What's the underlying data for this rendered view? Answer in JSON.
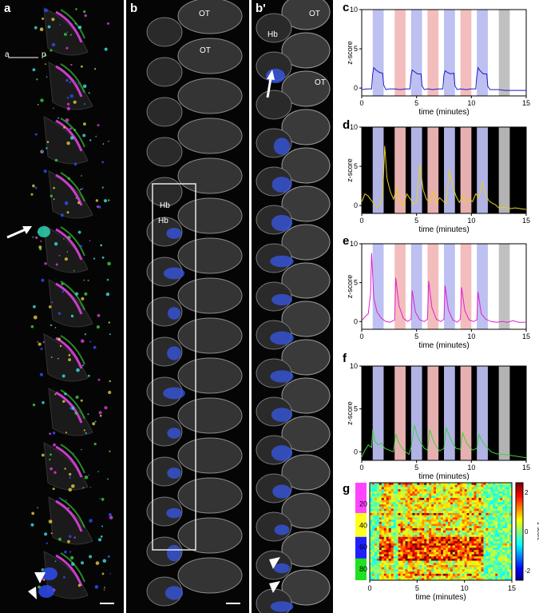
{
  "figure": {
    "panel_a": {
      "label": "a",
      "axis_left": "a",
      "axis_right": "p"
    },
    "panel_b": {
      "label": "b",
      "ot1": "OT",
      "ot2": "OT",
      "hb1": "Hb",
      "hb2": "Hb"
    },
    "panel_b2": {
      "label": "b'",
      "hb": "Hb",
      "ot1": "OT",
      "ot2": "OT"
    }
  },
  "chart_data": [
    {
      "panel": "c",
      "type": "line",
      "xlabel": "time (minutes)",
      "ylabel": "z-score",
      "xlim": [
        0,
        15
      ],
      "ylim": [
        -1,
        10
      ],
      "xticks": [
        0,
        5,
        10,
        15
      ],
      "yticks": [
        0,
        5,
        10
      ],
      "background": "#ffffff",
      "line_color": "#1a1acc",
      "stim_bands": [
        {
          "start": 1.0,
          "end": 2.0,
          "color": "#b9bdf0"
        },
        {
          "start": 3.0,
          "end": 4.0,
          "color": "#f3b9b9"
        },
        {
          "start": 4.5,
          "end": 5.5,
          "color": "#b9bdf0"
        },
        {
          "start": 6.0,
          "end": 7.0,
          "color": "#f3b9b9"
        },
        {
          "start": 7.5,
          "end": 8.5,
          "color": "#b9bdf0"
        },
        {
          "start": 9.0,
          "end": 10.0,
          "color": "#f3b9b9"
        },
        {
          "start": 10.5,
          "end": 11.5,
          "color": "#b9bdf0"
        },
        {
          "start": 12.5,
          "end": 13.5,
          "color": "#bdbdbd"
        }
      ],
      "x": [
        0,
        0.5,
        0.9,
        1.0,
        1.1,
        1.3,
        1.6,
        1.9,
        2.0,
        2.2,
        2.5,
        3.0,
        3.5,
        4.0,
        4.4,
        4.5,
        4.6,
        4.8,
        5.1,
        5.4,
        5.5,
        5.7,
        6.0,
        6.5,
        7.0,
        7.4,
        7.5,
        7.6,
        7.8,
        8.1,
        8.4,
        8.5,
        8.7,
        9.0,
        9.5,
        10.0,
        10.4,
        10.5,
        10.6,
        10.8,
        11.1,
        11.4,
        11.5,
        11.7,
        12.0,
        12.5,
        13.0,
        13.5,
        14.0,
        14.5,
        15.0
      ],
      "y": [
        -0.2,
        -0.1,
        -0.1,
        1.8,
        2.6,
        2.3,
        2.0,
        1.9,
        0.4,
        -0.2,
        -0.1,
        -0.1,
        -0.2,
        -0.1,
        -0.1,
        1.6,
        2.3,
        2.1,
        1.8,
        1.8,
        0.3,
        -0.2,
        -0.1,
        -0.2,
        -0.1,
        -0.1,
        1.7,
        2.2,
        2.0,
        1.8,
        1.9,
        0.3,
        -0.2,
        -0.1,
        -0.2,
        -0.1,
        -0.1,
        1.6,
        2.6,
        2.2,
        1.8,
        1.8,
        0.2,
        -0.2,
        -0.2,
        -0.2,
        -0.3,
        -0.3,
        -0.3,
        -0.3,
        -0.3
      ]
    },
    {
      "panel": "d",
      "type": "line",
      "xlabel": "time (minutes)",
      "ylabel": "z-score",
      "xlim": [
        0,
        15
      ],
      "ylim": [
        -1,
        10
      ],
      "xticks": [
        0,
        5,
        10,
        15
      ],
      "yticks": [
        0,
        5,
        10
      ],
      "background": "#000000",
      "line_color": "#e8d020",
      "stim_bands": [
        {
          "start": 1.0,
          "end": 2.0,
          "color": "#b9bdf0"
        },
        {
          "start": 3.0,
          "end": 4.0,
          "color": "#f3b9b9"
        },
        {
          "start": 4.5,
          "end": 5.5,
          "color": "#b9bdf0"
        },
        {
          "start": 6.0,
          "end": 7.0,
          "color": "#f3b9b9"
        },
        {
          "start": 7.5,
          "end": 8.5,
          "color": "#b9bdf0"
        },
        {
          "start": 9.0,
          "end": 10.0,
          "color": "#f3b9b9"
        },
        {
          "start": 10.5,
          "end": 11.5,
          "color": "#b9bdf0"
        },
        {
          "start": 12.5,
          "end": 13.5,
          "color": "#bdbdbd"
        }
      ],
      "x": [
        0,
        0.3,
        0.6,
        0.9,
        1.1,
        1.4,
        1.7,
        1.9,
        2.1,
        2.3,
        2.6,
        2.9,
        3.2,
        3.5,
        3.8,
        4.1,
        4.4,
        4.7,
        5.0,
        5.3,
        5.6,
        5.9,
        6.2,
        6.5,
        6.8,
        7.1,
        7.4,
        7.7,
        8.0,
        8.3,
        8.6,
        8.9,
        9.2,
        9.5,
        9.8,
        10.1,
        10.4,
        10.7,
        11.0,
        11.3,
        11.6,
        11.9,
        12.2,
        12.5,
        13.0,
        13.5,
        14.0,
        14.5,
        15.0
      ],
      "y": [
        0.5,
        1.5,
        1.2,
        0.6,
        0.3,
        -0.2,
        0.2,
        1.0,
        7.6,
        3.5,
        1.8,
        0.8,
        2.2,
        0.3,
        -0.1,
        1.5,
        0.9,
        0.2,
        0.4,
        5.3,
        2.0,
        0.8,
        0.4,
        1.8,
        0.3,
        1.0,
        0.6,
        0.2,
        4.5,
        2.5,
        1.2,
        0.4,
        1.2,
        0.4,
        0.8,
        0.5,
        1.5,
        1.0,
        3.0,
        1.4,
        0.6,
        0.3,
        0.1,
        -0.3,
        -0.2,
        -0.4,
        -0.3,
        -0.4,
        -0.5
      ]
    },
    {
      "panel": "e",
      "type": "line",
      "xlabel": "time (minutes)",
      "ylabel": "z-score",
      "xlim": [
        0,
        15
      ],
      "ylim": [
        -1,
        10
      ],
      "xticks": [
        0,
        5,
        10,
        15
      ],
      "yticks": [
        0,
        5,
        10
      ],
      "background": "#ffffff",
      "line_color": "#e020d0",
      "stim_bands": [
        {
          "start": 1.0,
          "end": 2.0,
          "color": "#b9bdf0"
        },
        {
          "start": 3.0,
          "end": 4.0,
          "color": "#f3b9b9"
        },
        {
          "start": 4.5,
          "end": 5.5,
          "color": "#b9bdf0"
        },
        {
          "start": 6.0,
          "end": 7.0,
          "color": "#f3b9b9"
        },
        {
          "start": 7.5,
          "end": 8.5,
          "color": "#b9bdf0"
        },
        {
          "start": 9.0,
          "end": 10.0,
          "color": "#f3b9b9"
        },
        {
          "start": 10.5,
          "end": 11.5,
          "color": "#b9bdf0"
        },
        {
          "start": 12.5,
          "end": 13.5,
          "color": "#bdbdbd"
        }
      ],
      "x": [
        0,
        0.3,
        0.6,
        0.8,
        0.9,
        1.1,
        1.4,
        1.8,
        2.2,
        2.6,
        3.0,
        3.1,
        3.4,
        3.8,
        4.2,
        4.5,
        4.6,
        4.9,
        5.3,
        5.7,
        6.0,
        6.1,
        6.4,
        6.8,
        7.2,
        7.5,
        7.6,
        7.9,
        8.3,
        8.7,
        9.0,
        9.1,
        9.4,
        9.8,
        10.2,
        10.5,
        10.6,
        10.9,
        11.3,
        11.8,
        12.3,
        12.8,
        13.3,
        13.8,
        14.3,
        15.0
      ],
      "y": [
        0.1,
        0.6,
        1.0,
        3.5,
        8.8,
        3.0,
        1.2,
        0.4,
        0.0,
        -0.1,
        0.2,
        5.6,
        2.0,
        0.4,
        0.0,
        0.3,
        4.0,
        1.2,
        0.2,
        0.0,
        0.3,
        5.2,
        1.8,
        0.3,
        0.0,
        0.3,
        4.6,
        1.5,
        0.2,
        -0.1,
        0.3,
        4.4,
        1.4,
        0.2,
        0.0,
        0.2,
        3.8,
        1.0,
        0.3,
        0.0,
        -0.1,
        0.0,
        -0.1,
        0.1,
        -0.1,
        -0.1
      ]
    },
    {
      "panel": "f",
      "type": "line",
      "xlabel": "time (minutes)",
      "ylabel": "z-score",
      "xlim": [
        0,
        15
      ],
      "ylim": [
        -1,
        10
      ],
      "xticks": [
        0,
        5,
        10,
        15
      ],
      "yticks": [
        0,
        5,
        10
      ],
      "background": "#000000",
      "line_color": "#40d040",
      "stim_bands": [
        {
          "start": 1.0,
          "end": 2.0,
          "color": "#b9bdf0"
        },
        {
          "start": 3.0,
          "end": 4.0,
          "color": "#f3b9b9"
        },
        {
          "start": 4.5,
          "end": 5.5,
          "color": "#b9bdf0"
        },
        {
          "start": 6.0,
          "end": 7.0,
          "color": "#f3b9b9"
        },
        {
          "start": 7.5,
          "end": 8.5,
          "color": "#b9bdf0"
        },
        {
          "start": 9.0,
          "end": 10.0,
          "color": "#f3b9b9"
        },
        {
          "start": 10.5,
          "end": 11.5,
          "color": "#b9bdf0"
        },
        {
          "start": 12.5,
          "end": 13.5,
          "color": "#bdbdbd"
        }
      ],
      "x": [
        0,
        0.3,
        0.6,
        0.9,
        1.0,
        1.2,
        1.5,
        1.8,
        2.1,
        2.5,
        2.9,
        3.1,
        3.4,
        3.7,
        4.0,
        4.3,
        4.5,
        4.8,
        5.1,
        5.4,
        5.7,
        6.0,
        6.2,
        6.5,
        6.8,
        7.1,
        7.5,
        7.7,
        8.0,
        8.3,
        8.6,
        9.0,
        9.2,
        9.5,
        9.8,
        10.1,
        10.5,
        10.7,
        11.0,
        11.4,
        11.8,
        12.2,
        12.6,
        13.0,
        13.5,
        14.0,
        14.5,
        15.0
      ],
      "y": [
        -0.6,
        0.2,
        0.8,
        0.5,
        2.6,
        1.2,
        0.8,
        1.0,
        0.4,
        0.2,
        0.0,
        2.1,
        1.0,
        0.4,
        0.0,
        -0.3,
        0.5,
        3.1,
        1.8,
        1.0,
        0.4,
        0.2,
        2.6,
        1.4,
        0.6,
        0.1,
        0.4,
        2.8,
        1.8,
        1.0,
        0.4,
        0.3,
        2.2,
        1.2,
        0.6,
        0.2,
        0.4,
        2.0,
        1.2,
        0.5,
        0.0,
        -0.2,
        -0.3,
        -0.3,
        -0.4,
        -0.5,
        -0.6,
        -0.7
      ]
    },
    {
      "panel": "g",
      "type": "heatmap",
      "xlabel": "time (minutes)",
      "colorbar_label": "z-score",
      "xticks": [
        0,
        5,
        10,
        15
      ],
      "yticks": [
        20,
        40,
        60,
        80
      ],
      "colorbar_ticks": [
        2,
        0,
        -2
      ],
      "n_rows": 90,
      "n_cols": 150,
      "groups": [
        {
          "color": "#ff44ff",
          "rows": [
            1,
            28
          ]
        },
        {
          "color": "#ffff20",
          "rows": [
            29,
            50
          ]
        },
        {
          "color": "#2020ff",
          "rows": [
            51,
            70
          ]
        },
        {
          "color": "#20e020",
          "rows": [
            71,
            90
          ]
        }
      ]
    }
  ]
}
